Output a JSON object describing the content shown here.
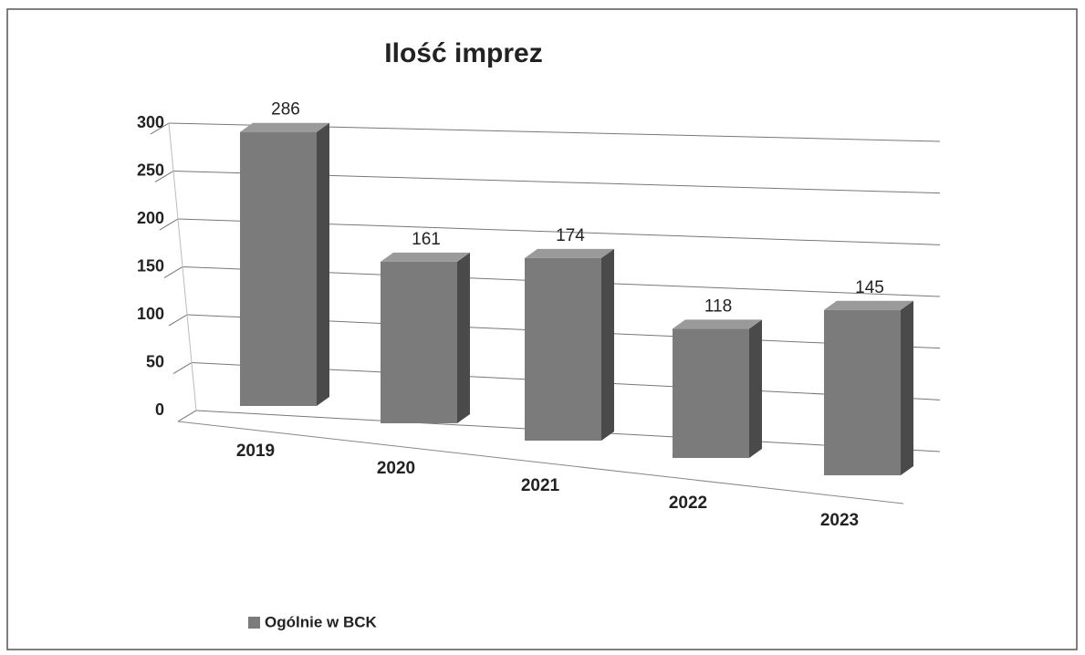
{
  "chart_data": {
    "type": "bar3d",
    "title": "Ilość imprez",
    "categories": [
      "2019",
      "2020",
      "2021",
      "2022",
      "2023"
    ],
    "series": [
      {
        "name": "Ogólnie w BCK",
        "color": "#7b7b7b",
        "values": [
          286,
          161,
          174,
          118,
          145
        ]
      }
    ],
    "ylim": [
      0,
      300
    ],
    "yticks": [
      0,
      50,
      100,
      150,
      200,
      250,
      300
    ],
    "grid": true,
    "legend": "bottom-left"
  }
}
